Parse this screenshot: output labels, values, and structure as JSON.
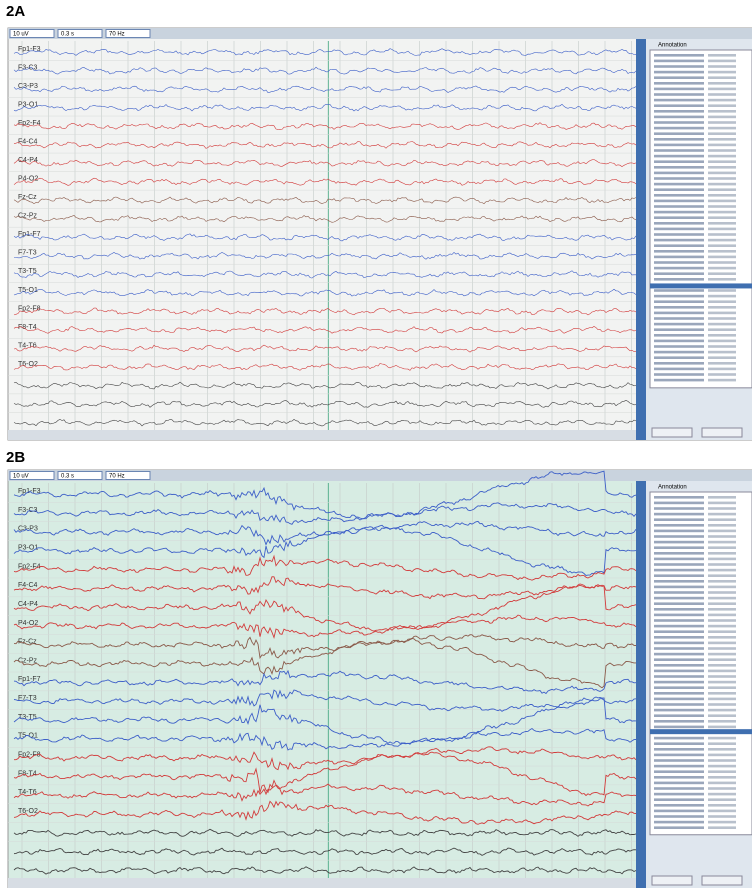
{
  "channels": [
    {
      "label": "Fp1-F3",
      "color": "#3d5fc8"
    },
    {
      "label": "F3-C3",
      "color": "#3d5fc8"
    },
    {
      "label": "C3-P3",
      "color": "#3d5fc8"
    },
    {
      "label": "P3-O1",
      "color": "#3d5fc8"
    },
    {
      "label": "Fp2-F4",
      "color": "#d23c3c"
    },
    {
      "label": "F4-C4",
      "color": "#d23c3c"
    },
    {
      "label": "C4-P4",
      "color": "#d23c3c"
    },
    {
      "label": "P4-O2",
      "color": "#d23c3c"
    },
    {
      "label": "Fz-Cz",
      "color": "#8a5a4a"
    },
    {
      "label": "Cz-Pz",
      "color": "#8a5a4a"
    },
    {
      "label": "Fp1-F7",
      "color": "#3d5fc8"
    },
    {
      "label": "F7-T3",
      "color": "#3d5fc8"
    },
    {
      "label": "T3-T5",
      "color": "#3d5fc8"
    },
    {
      "label": "T5-O1",
      "color": "#3d5fc8"
    },
    {
      "label": "Fp2-F8",
      "color": "#d23c3c"
    },
    {
      "label": "F8-T4",
      "color": "#d23c3c"
    },
    {
      "label": "T4-T6",
      "color": "#d23c3c"
    },
    {
      "label": "T6-O2",
      "color": "#d23c3c"
    }
  ],
  "panels": [
    {
      "label": "2A",
      "toolbar": [
        "10 uV",
        "0.3 s",
        "70 Hz"
      ],
      "side_header": "Annotation"
    },
    {
      "label": "2B",
      "toolbar": [
        "10 uV",
        "0.3 s",
        "70 Hz"
      ],
      "side_header": "Annotation"
    }
  ]
}
